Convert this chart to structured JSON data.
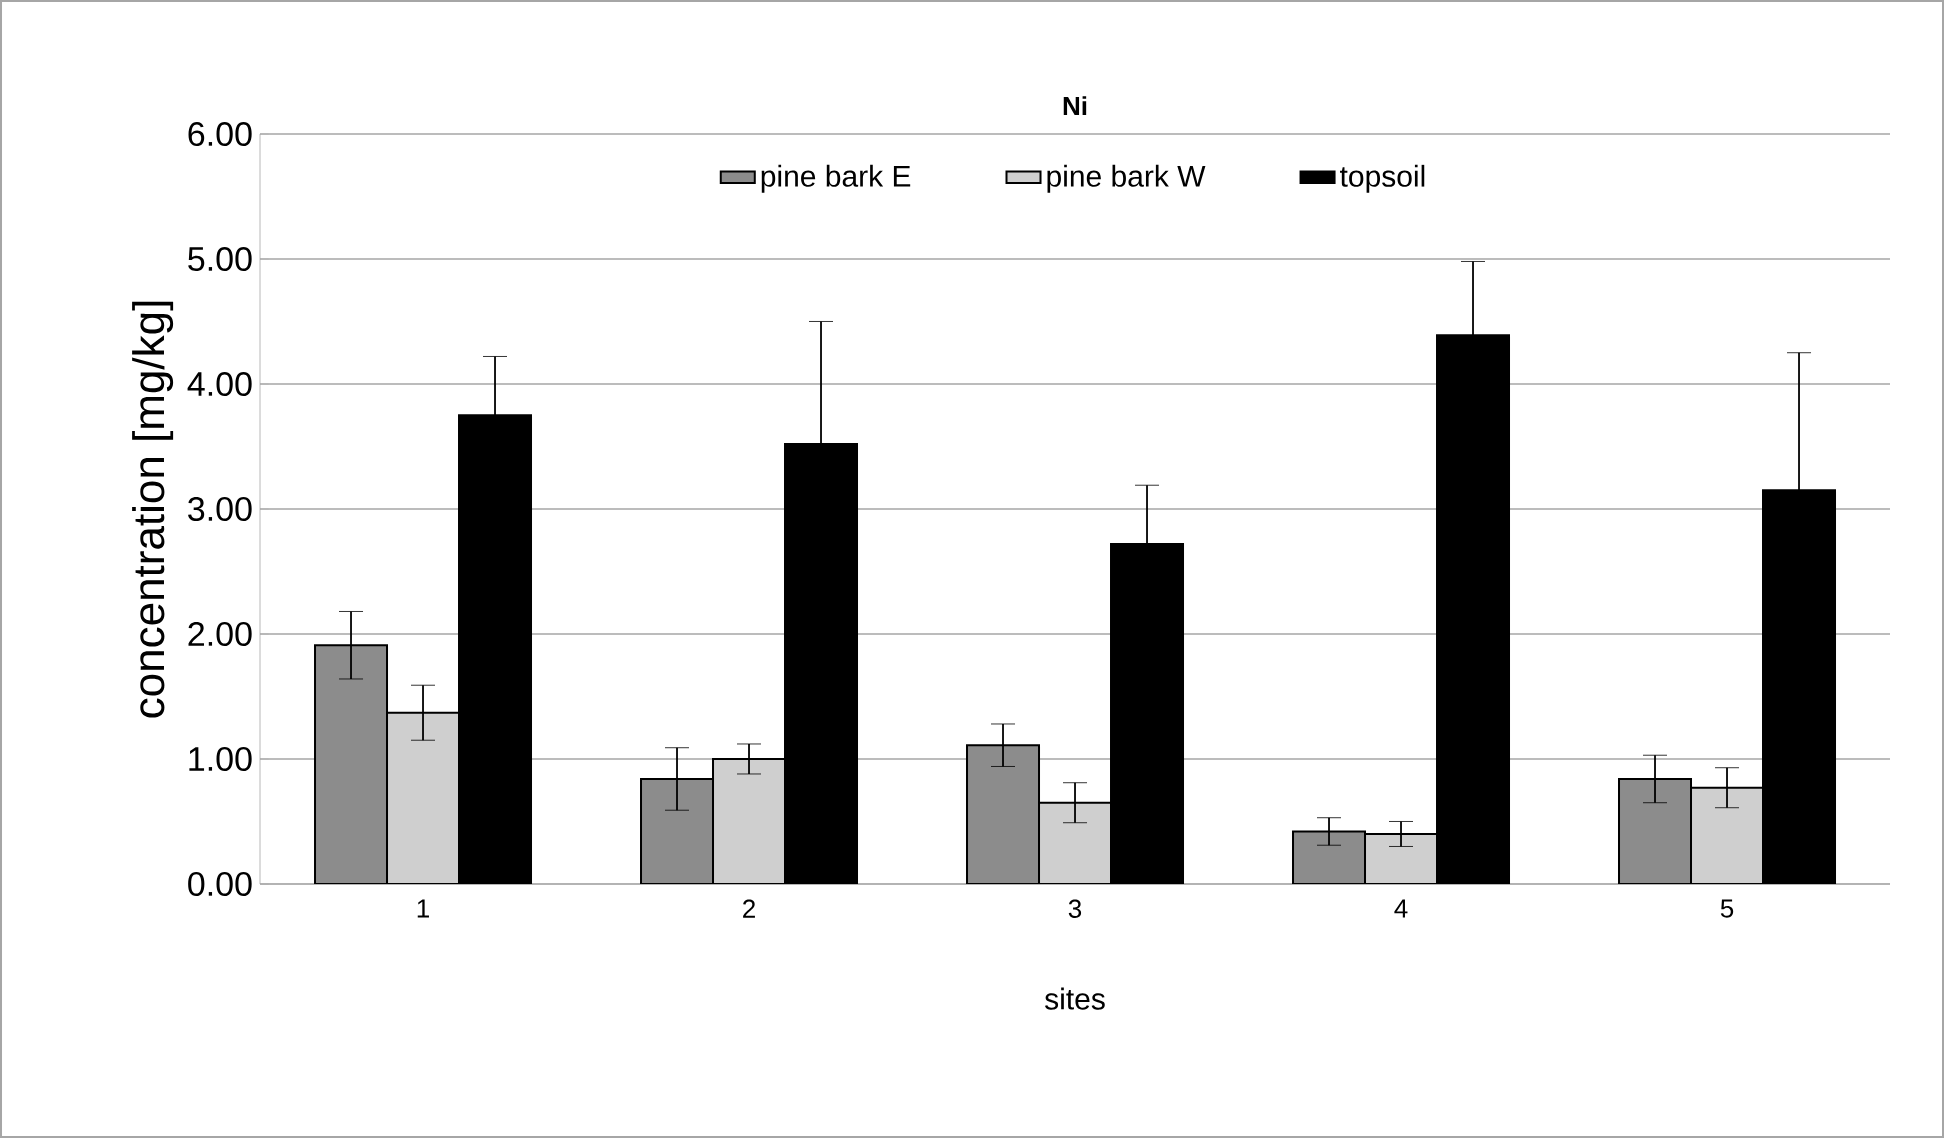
{
  "chart_data": {
    "type": "bar",
    "title": "Ni",
    "xlabel": "sites",
    "ylabel": "concentration [mg/kg]",
    "categories": [
      "1",
      "2",
      "3",
      "4",
      "5"
    ],
    "series": [
      {
        "name": "pine bark E",
        "color": "#8c8c8c",
        "values": [
          1.91,
          0.84,
          1.11,
          0.42,
          0.84
        ],
        "errors": [
          0.27,
          0.25,
          0.17,
          0.11,
          0.19
        ]
      },
      {
        "name": "pine bark W",
        "color": "#cfcfcf",
        "values": [
          1.37,
          1.0,
          0.65,
          0.4,
          0.77
        ],
        "errors": [
          0.22,
          0.12,
          0.16,
          0.1,
          0.16
        ]
      },
      {
        "name": "topsoil",
        "color": "#000000",
        "values": [
          3.75,
          3.52,
          2.72,
          4.39,
          3.15
        ],
        "errors": [
          0.47,
          0.98,
          0.47,
          0.59,
          1.1
        ]
      }
    ],
    "ylim": [
      0,
      6
    ],
    "yticks": [
      {
        "value": 0,
        "label": "0.00"
      },
      {
        "value": 1,
        "label": "1.00"
      },
      {
        "value": 2,
        "label": "2.00"
      },
      {
        "value": 3,
        "label": "3.00"
      },
      {
        "value": 4,
        "label": "4.00"
      },
      {
        "value": 5,
        "label": "5.00"
      },
      {
        "value": 6,
        "label": "6.00"
      }
    ],
    "grid": "y",
    "legend": "top"
  }
}
